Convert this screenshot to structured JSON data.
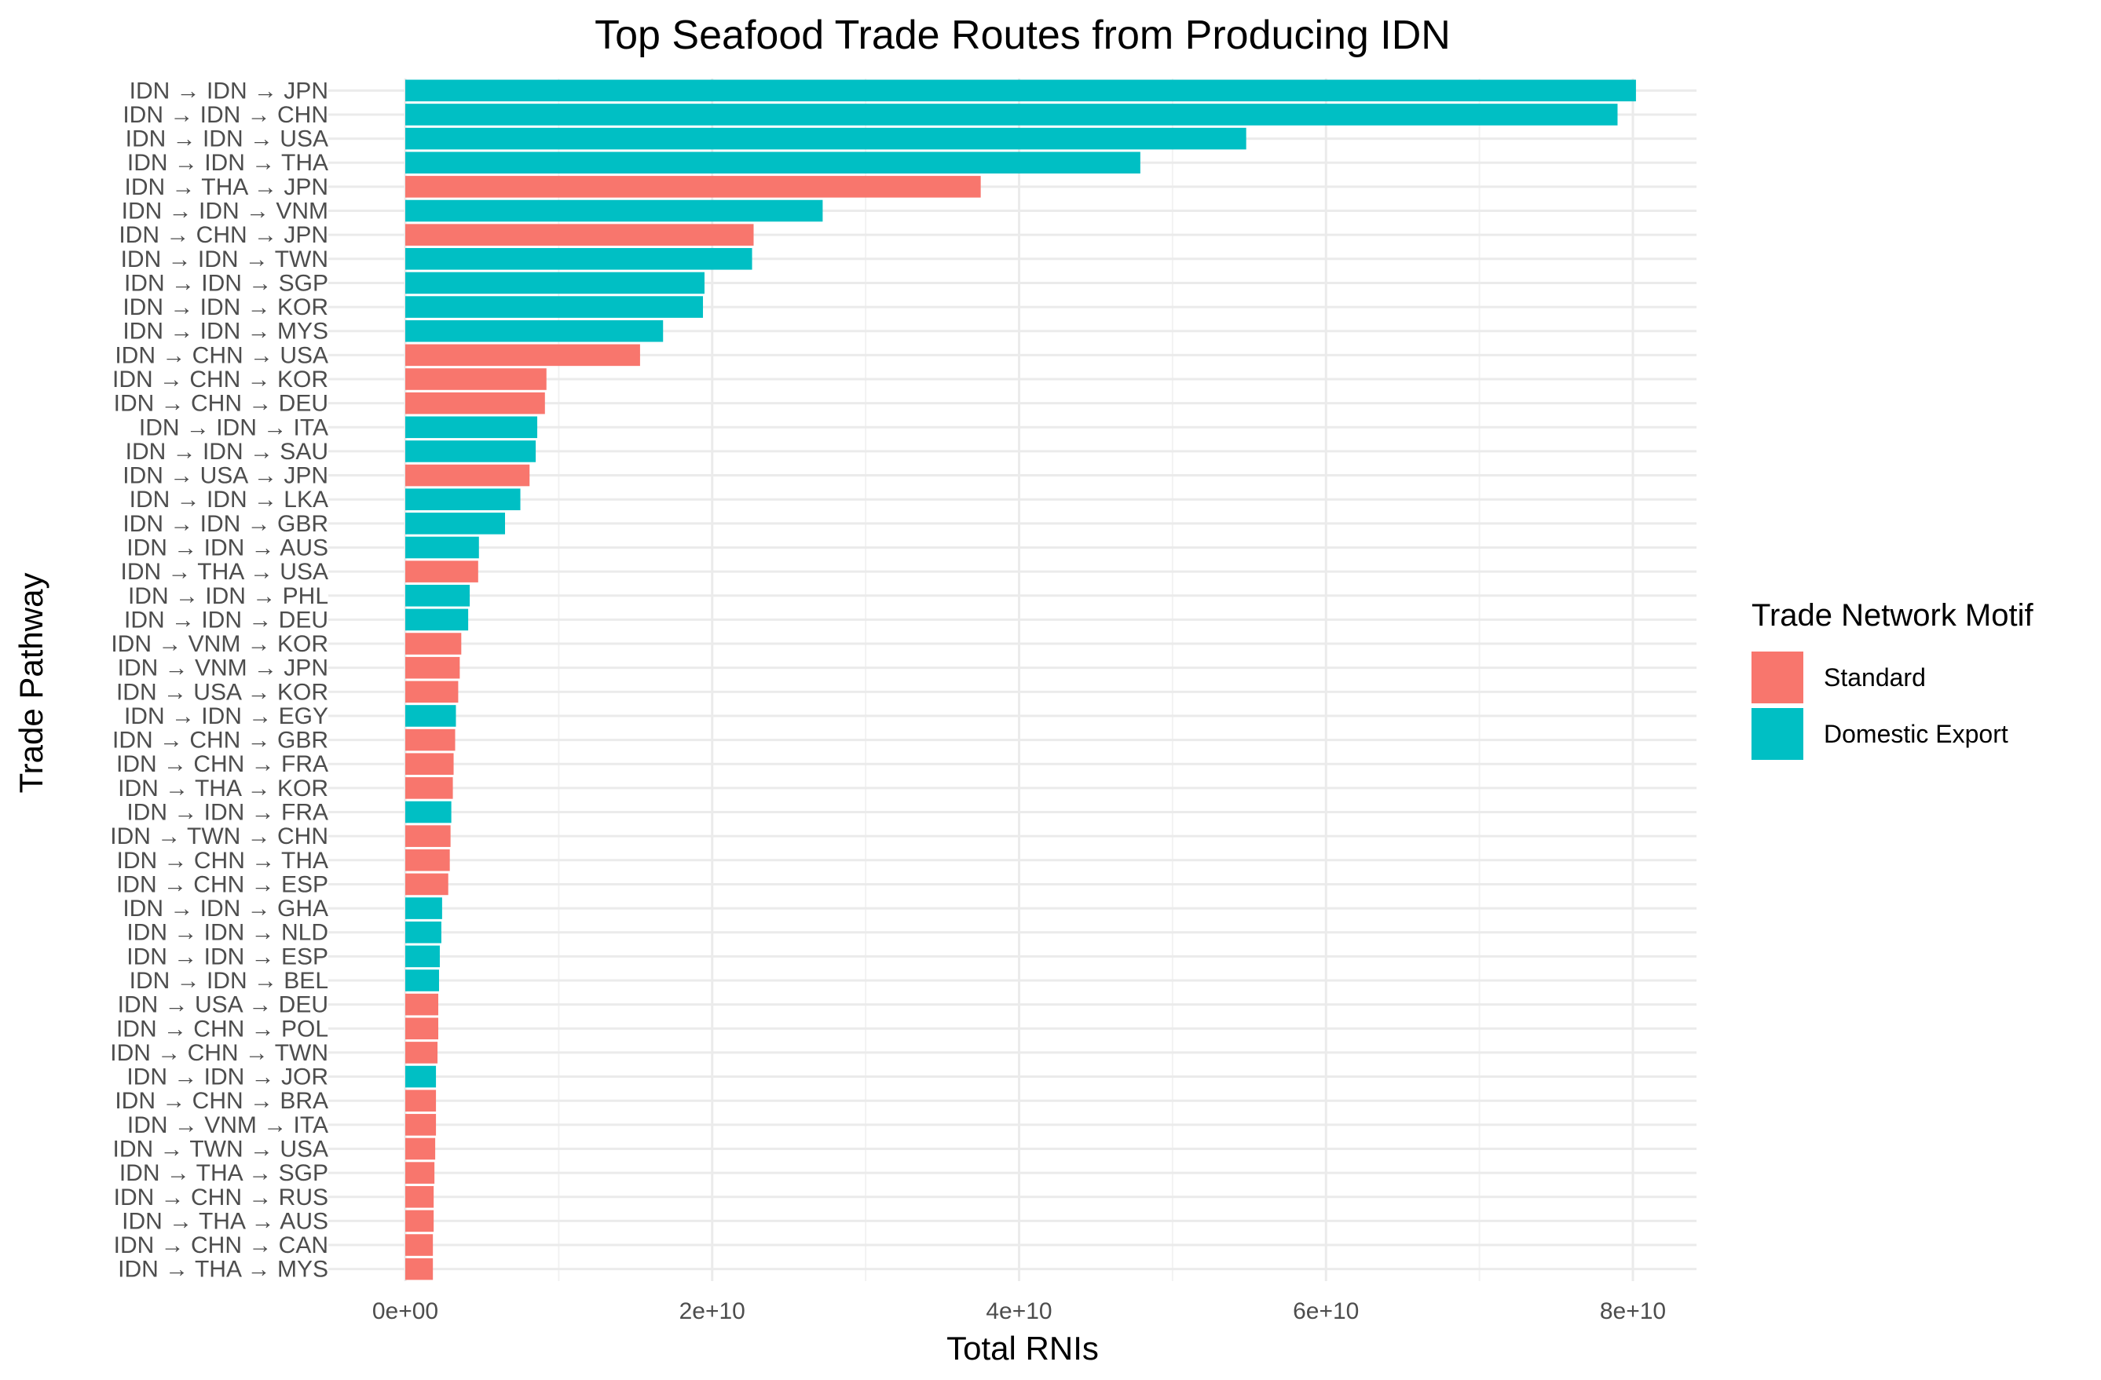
{
  "chart_data": {
    "type": "bar",
    "orientation": "horizontal",
    "title": "Top Seafood Trade Routes from Producing IDN",
    "xlabel": "Total RNIs",
    "ylabel": "Trade Pathway",
    "xlim": [
      0,
      83000000000
    ],
    "x_ticks": [
      0,
      20000000000,
      40000000000,
      60000000000,
      80000000000
    ],
    "x_tick_labels": [
      "0e+00",
      "2e+10",
      "4e+10",
      "6e+10",
      "8e+10"
    ],
    "grid": true,
    "legend": {
      "title": "Trade Network Motif",
      "placement": "right",
      "entries": [
        {
          "key": "Standard",
          "label": "Standard",
          "color": "#F8766D"
        },
        {
          "key": "Domestic Export",
          "label": "Domestic Export",
          "color": "#00BFC4"
        }
      ]
    },
    "bars": [
      {
        "label": "IDN → IDN → JPN",
        "value": 80200000000,
        "motif": "Domestic Export"
      },
      {
        "label": "IDN → IDN → CHN",
        "value": 79000000000,
        "motif": "Domestic Export"
      },
      {
        "label": "IDN → IDN → USA",
        "value": 54800000000,
        "motif": "Domestic Export"
      },
      {
        "label": "IDN → IDN → THA",
        "value": 47900000000,
        "motif": "Domestic Export"
      },
      {
        "label": "IDN → THA → JPN",
        "value": 37500000000,
        "motif": "Standard"
      },
      {
        "label": "IDN → IDN → VNM",
        "value": 27200000000,
        "motif": "Domestic Export"
      },
      {
        "label": "IDN → CHN → JPN",
        "value": 22700000000,
        "motif": "Standard"
      },
      {
        "label": "IDN → IDN → TWN",
        "value": 22600000000,
        "motif": "Domestic Export"
      },
      {
        "label": "IDN → IDN → SGP",
        "value": 19500000000,
        "motif": "Domestic Export"
      },
      {
        "label": "IDN → IDN → KOR",
        "value": 19400000000,
        "motif": "Domestic Export"
      },
      {
        "label": "IDN → IDN → MYS",
        "value": 16800000000,
        "motif": "Domestic Export"
      },
      {
        "label": "IDN → CHN → USA",
        "value": 15300000000,
        "motif": "Standard"
      },
      {
        "label": "IDN → CHN → KOR",
        "value": 9200000000,
        "motif": "Standard"
      },
      {
        "label": "IDN → CHN → DEU",
        "value": 9100000000,
        "motif": "Standard"
      },
      {
        "label": "IDN → IDN → ITA",
        "value": 8600000000,
        "motif": "Domestic Export"
      },
      {
        "label": "IDN → IDN → SAU",
        "value": 8500000000,
        "motif": "Domestic Export"
      },
      {
        "label": "IDN → USA → JPN",
        "value": 8100000000,
        "motif": "Standard"
      },
      {
        "label": "IDN → IDN → LKA",
        "value": 7500000000,
        "motif": "Domestic Export"
      },
      {
        "label": "IDN → IDN → GBR",
        "value": 6500000000,
        "motif": "Domestic Export"
      },
      {
        "label": "IDN → IDN → AUS",
        "value": 4800000000,
        "motif": "Domestic Export"
      },
      {
        "label": "IDN → THA → USA",
        "value": 4750000000,
        "motif": "Standard"
      },
      {
        "label": "IDN → IDN → PHL",
        "value": 4200000000,
        "motif": "Domestic Export"
      },
      {
        "label": "IDN → IDN → DEU",
        "value": 4100000000,
        "motif": "Domestic Export"
      },
      {
        "label": "IDN → VNM → KOR",
        "value": 3650000000,
        "motif": "Standard"
      },
      {
        "label": "IDN → VNM → JPN",
        "value": 3550000000,
        "motif": "Standard"
      },
      {
        "label": "IDN → USA → KOR",
        "value": 3450000000,
        "motif": "Standard"
      },
      {
        "label": "IDN → IDN → EGY",
        "value": 3300000000,
        "motif": "Domestic Export"
      },
      {
        "label": "IDN → CHN → GBR",
        "value": 3250000000,
        "motif": "Standard"
      },
      {
        "label": "IDN → CHN → FRA",
        "value": 3150000000,
        "motif": "Standard"
      },
      {
        "label": "IDN → THA → KOR",
        "value": 3100000000,
        "motif": "Standard"
      },
      {
        "label": "IDN → IDN → FRA",
        "value": 3000000000,
        "motif": "Domestic Export"
      },
      {
        "label": "IDN → TWN → CHN",
        "value": 2950000000,
        "motif": "Standard"
      },
      {
        "label": "IDN → CHN → THA",
        "value": 2900000000,
        "motif": "Standard"
      },
      {
        "label": "IDN → CHN → ESP",
        "value": 2800000000,
        "motif": "Standard"
      },
      {
        "label": "IDN → IDN → GHA",
        "value": 2400000000,
        "motif": "Domestic Export"
      },
      {
        "label": "IDN → IDN → NLD",
        "value": 2350000000,
        "motif": "Domestic Export"
      },
      {
        "label": "IDN → IDN → ESP",
        "value": 2250000000,
        "motif": "Domestic Export"
      },
      {
        "label": "IDN → IDN → BEL",
        "value": 2200000000,
        "motif": "Domestic Export"
      },
      {
        "label": "IDN → USA → DEU",
        "value": 2150000000,
        "motif": "Standard"
      },
      {
        "label": "IDN → CHN → POL",
        "value": 2150000000,
        "motif": "Standard"
      },
      {
        "label": "IDN → CHN → TWN",
        "value": 2100000000,
        "motif": "Standard"
      },
      {
        "label": "IDN → IDN → JOR",
        "value": 2000000000,
        "motif": "Domestic Export"
      },
      {
        "label": "IDN → CHN → BRA",
        "value": 2000000000,
        "motif": "Standard"
      },
      {
        "label": "IDN → VNM → ITA",
        "value": 2000000000,
        "motif": "Standard"
      },
      {
        "label": "IDN → TWN → USA",
        "value": 1950000000,
        "motif": "Standard"
      },
      {
        "label": "IDN → THA → SGP",
        "value": 1900000000,
        "motif": "Standard"
      },
      {
        "label": "IDN → CHN → RUS",
        "value": 1850000000,
        "motif": "Standard"
      },
      {
        "label": "IDN → THA → AUS",
        "value": 1850000000,
        "motif": "Standard"
      },
      {
        "label": "IDN → CHN → CAN",
        "value": 1800000000,
        "motif": "Standard"
      },
      {
        "label": "IDN → THA → MYS",
        "value": 1800000000,
        "motif": "Standard"
      }
    ]
  }
}
